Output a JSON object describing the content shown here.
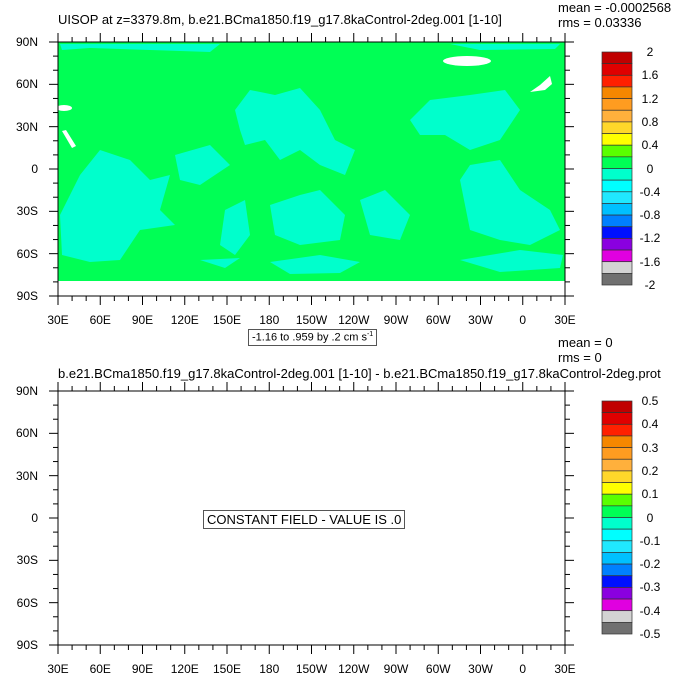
{
  "chart_data": [
    {
      "type": "heatmap",
      "title": "UISOP at z=3379.8m, b.e21.BCma1850.f19_g17.8kaControl-2deg.001 [1-10]",
      "stats": {
        "mean": "mean = -0.0002568",
        "rms": "rms = 0.03336"
      },
      "info_label": "-1.16 to .959 by .2 cm s",
      "info_unit_exp": "-1",
      "xlim": [
        30,
        390
      ],
      "ylim": [
        -90,
        90
      ],
      "xticks": [
        "30E",
        "60E",
        "90E",
        "120E",
        "150E",
        "180",
        "150W",
        "120W",
        "90W",
        "60W",
        "30W",
        "0",
        "30E"
      ],
      "yticks": [
        "90N",
        "60N",
        "30N",
        "0",
        "30S",
        "60S",
        "90S"
      ],
      "colorbar": {
        "labels": [
          "2",
          "1.6",
          "1.2",
          "0.8",
          "0.4",
          "0",
          "-0.4",
          "-0.8",
          "-1.2",
          "-1.6",
          "-2"
        ],
        "colors": [
          "#c00000",
          "#e00000",
          "#ff2000",
          "#f58700",
          "#ff9c20",
          "#ffb03c",
          "#ffd72a",
          "#ffff00",
          "#5aff00",
          "#00ff55",
          "#00ffcc",
          "#00ffff",
          "#20e8ff",
          "#00c0ff",
          "#0080ff",
          "#0010ff",
          "#8a00e0",
          "#e000e0",
          "#d3d3d3",
          "#707070"
        ]
      },
      "field_colors": {
        "dominant": "#00ff55",
        "secondary": "#00ffcc",
        "missing": "#ffffff"
      }
    },
    {
      "type": "heatmap",
      "title": "b.e21.BCma1850.f19_g17.8kaControl-2deg.001 [1-10] - b.e21.BCma1850.f19_g17.8kaControl-2deg.prot",
      "stats": {
        "mean": "mean = 0",
        "rms": "rms = 0"
      },
      "info_label": "CONSTANT FIELD - VALUE IS .0",
      "xlim": [
        30,
        390
      ],
      "ylim": [
        -90,
        90
      ],
      "xticks": [
        "30E",
        "60E",
        "90E",
        "120E",
        "150E",
        "180",
        "150W",
        "120W",
        "90W",
        "60W",
        "30W",
        "0",
        "30E"
      ],
      "yticks": [
        "90N",
        "60N",
        "30N",
        "0",
        "30S",
        "60S",
        "90S"
      ],
      "colorbar": {
        "labels": [
          "0.5",
          "0.4",
          "0.3",
          "0.2",
          "0.1",
          "0",
          "-0.1",
          "-0.2",
          "-0.3",
          "-0.4",
          "-0.5"
        ],
        "colors": [
          "#c00000",
          "#e00000",
          "#ff2000",
          "#f58700",
          "#ff9c20",
          "#ffb03c",
          "#ffd72a",
          "#ffff00",
          "#5aff00",
          "#00ff55",
          "#00ffcc",
          "#00ffff",
          "#20e8ff",
          "#00c0ff",
          "#0080ff",
          "#0010ff",
          "#8a00e0",
          "#e000e0",
          "#d3d3d3",
          "#707070"
        ]
      }
    }
  ]
}
